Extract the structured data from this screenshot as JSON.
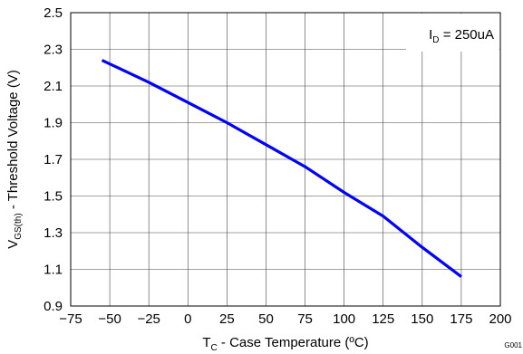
{
  "chart_data": {
    "type": "line",
    "title": "",
    "xlabel": {
      "main": "T",
      "sub": "C",
      "rest": " - Case Temperature (ºC)"
    },
    "ylabel": {
      "main": "V",
      "sub": "GS(th)",
      "rest": " - Threshold Voltage (V)"
    },
    "xlim": [
      -75,
      200
    ],
    "ylim": [
      0.9,
      2.5
    ],
    "x_ticks": [
      "−75",
      "−50",
      "−25",
      "0",
      "25",
      "50",
      "75",
      "100",
      "125",
      "150",
      "175",
      "200"
    ],
    "y_ticks": [
      "0.9",
      "1.1",
      "1.3",
      "1.5",
      "1.7",
      "1.9",
      "2.1",
      "2.3",
      "2.5"
    ],
    "grid": true,
    "legend_position": "top-right",
    "annotation": {
      "main": "I",
      "sub": "D",
      "rest": " = 250uA"
    },
    "figure_id": "G001",
    "line_color": "#0000ff",
    "series": [
      {
        "x": [
          -55,
          -25,
          0,
          25,
          50,
          75,
          100,
          125,
          150,
          175
        ],
        "y": [
          2.24,
          2.12,
          2.01,
          1.9,
          1.78,
          1.66,
          1.52,
          1.39,
          1.22,
          1.06
        ]
      }
    ]
  }
}
